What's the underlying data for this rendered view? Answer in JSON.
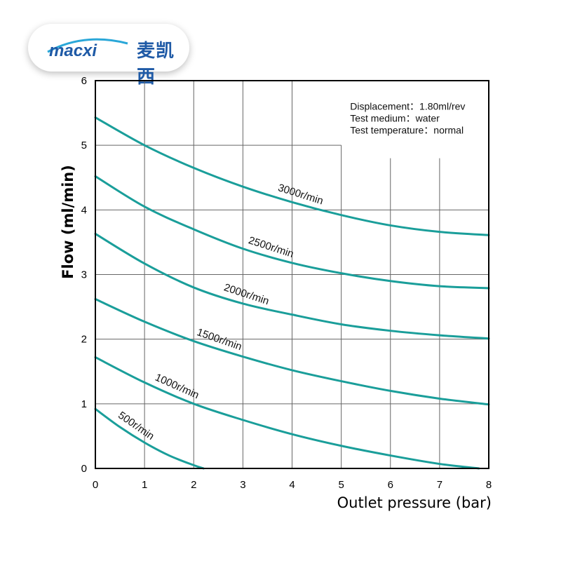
{
  "logo": {
    "latin": "macxi",
    "chinese": "麦凯西"
  },
  "colors": {
    "curve": "#1a9e9a",
    "grid": "#666666",
    "frame": "#000000"
  },
  "chart_data": {
    "type": "line",
    "xlabel": "Outlet pressure (bar)",
    "ylabel": "Flow (ml/min)",
    "xlim": [
      0,
      8
    ],
    "ylim": [
      0,
      6
    ],
    "xticks": [
      "0",
      "1",
      "2",
      "3",
      "4",
      "5",
      "6",
      "7",
      "8"
    ],
    "yticks": [
      "0",
      "1",
      "2",
      "3",
      "4",
      "5",
      "6"
    ],
    "grid": true,
    "notes": [
      "Displacement：1.80ml/rev",
      "Test medium：water",
      "Test temperature：normal"
    ],
    "series": [
      {
        "name": "500r/min",
        "x": [
          0,
          0.5,
          1,
          1.5,
          2,
          2.2
        ],
        "y": [
          0.92,
          0.64,
          0.4,
          0.2,
          0.05,
          0.0
        ]
      },
      {
        "name": "1000r/min",
        "x": [
          0,
          1,
          2,
          3,
          4,
          5,
          6,
          7,
          7.8
        ],
        "y": [
          1.72,
          1.33,
          1.0,
          0.75,
          0.53,
          0.35,
          0.2,
          0.07,
          0.0
        ]
      },
      {
        "name": "1500r/min",
        "x": [
          0,
          1,
          2,
          3,
          4,
          5,
          6,
          7,
          8
        ],
        "y": [
          2.62,
          2.27,
          1.97,
          1.73,
          1.52,
          1.35,
          1.2,
          1.08,
          0.99
        ]
      },
      {
        "name": "2000r/min",
        "x": [
          0,
          1,
          2,
          3,
          4,
          5,
          6,
          7,
          8
        ],
        "y": [
          3.63,
          3.17,
          2.8,
          2.55,
          2.38,
          2.23,
          2.13,
          2.06,
          2.01
        ]
      },
      {
        "name": "2500r/min",
        "x": [
          0,
          1,
          2,
          3,
          4,
          5,
          6,
          7,
          8
        ],
        "y": [
          4.52,
          4.05,
          3.7,
          3.4,
          3.18,
          3.02,
          2.9,
          2.82,
          2.79
        ]
      },
      {
        "name": "3000r/min",
        "x": [
          0,
          1,
          2,
          3,
          4,
          5,
          6,
          7,
          8
        ],
        "y": [
          5.43,
          5.0,
          4.65,
          4.36,
          4.12,
          3.92,
          3.76,
          3.66,
          3.61
        ]
      }
    ]
  }
}
